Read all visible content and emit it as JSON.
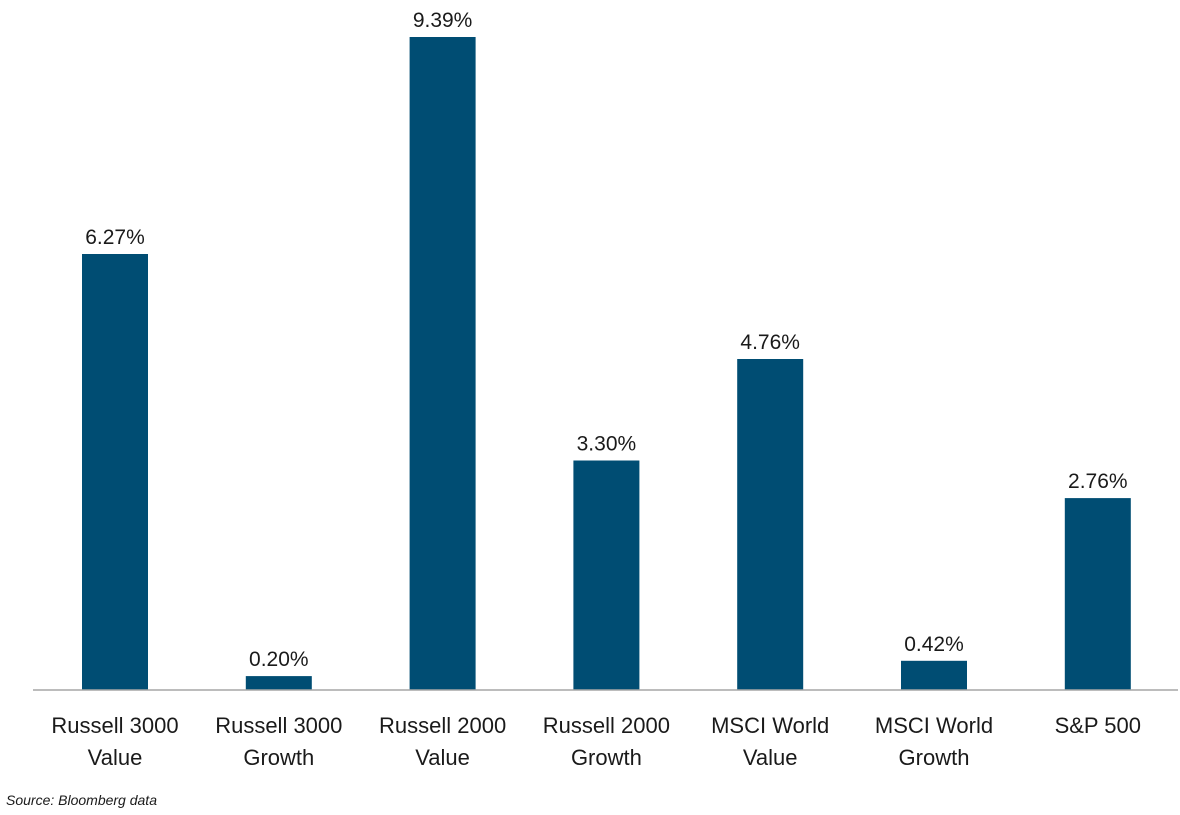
{
  "chart_data": {
    "type": "bar",
    "categories": [
      [
        "Russell 3000",
        "Value"
      ],
      [
        "Russell 3000",
        "Growth"
      ],
      [
        "Russell 2000",
        "Value"
      ],
      [
        "Russell 2000",
        "Growth"
      ],
      [
        "MSCI World",
        "Value"
      ],
      [
        "MSCI World",
        "Growth"
      ],
      [
        "S&P 500"
      ]
    ],
    "values": [
      6.27,
      0.2,
      9.39,
      3.3,
      4.76,
      0.42,
      2.76
    ],
    "data_labels": [
      "6.27%",
      "0.20%",
      "9.39%",
      "3.30%",
      "4.76%",
      "0.42%",
      "2.76%"
    ],
    "unit": "%",
    "ylim": [
      0,
      9.39
    ],
    "grid": false,
    "legend": "none",
    "bar_color": "#004d73",
    "axis_color": "#a6a6a6"
  },
  "source": "Source: Bloomberg data"
}
